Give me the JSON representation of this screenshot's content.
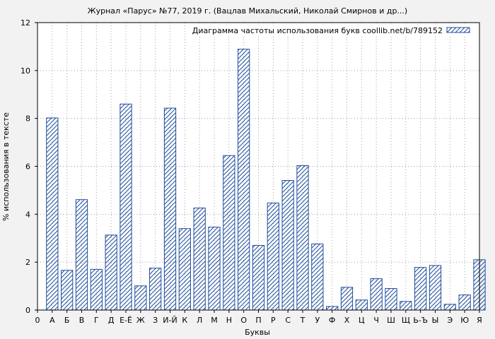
{
  "chart_data": {
    "type": "bar",
    "title": "Журнал «Парус» №77, 2019 г. (Вацлав Михальский, Николай Смирнов и др...)",
    "xlabel": "Буквы",
    "ylabel": "% использования в тексте",
    "legend": "Диаграмма частоты использования букв coollib.net/b/789152",
    "legend_position": "top-right",
    "grid": true,
    "ylim": [
      0,
      12
    ],
    "yticks": [
      0,
      2,
      4,
      6,
      8,
      10,
      12
    ],
    "x_tick_labels": [
      "0",
      "А",
      "Б",
      "В",
      "Г",
      "Д",
      "Е-Ё",
      "Ж",
      "З",
      "И-Й",
      "К",
      "Л",
      "М",
      "Н",
      "О",
      "П",
      "Р",
      "С",
      "Т",
      "У",
      "Ф",
      "Х",
      "Ц",
      "Ч",
      "Ш",
      "Щ",
      "Ь-Ъ",
      "Ы",
      "Э",
      "Ю",
      "Я"
    ],
    "categories": [
      "А",
      "Б",
      "В",
      "Г",
      "Д",
      "Е-Ё",
      "Ж",
      "З",
      "И-Й",
      "К",
      "Л",
      "М",
      "Н",
      "О",
      "П",
      "Р",
      "С",
      "Т",
      "У",
      "Ф",
      "Х",
      "Ц",
      "Ч",
      "Ш",
      "Щ",
      "Ь-Ъ",
      "Ы",
      "Э",
      "Ю",
      "Я"
    ],
    "values": [
      8.02,
      1.66,
      4.61,
      1.7,
      3.13,
      8.6,
      1.01,
      1.75,
      8.43,
      3.4,
      4.26,
      3.46,
      6.45,
      10.89,
      2.7,
      4.47,
      5.41,
      6.03,
      2.76,
      0.15,
      0.95,
      0.42,
      1.31,
      0.9,
      0.36,
      1.78,
      1.86,
      0.24,
      0.63,
      2.1
    ],
    "colors": {
      "bar_stroke": "#1f4e9c",
      "hatch": "#1f4e9c",
      "background": "#f2f2f2",
      "plot_bg": "#ffffff",
      "grid": "#a0a0a0"
    }
  }
}
